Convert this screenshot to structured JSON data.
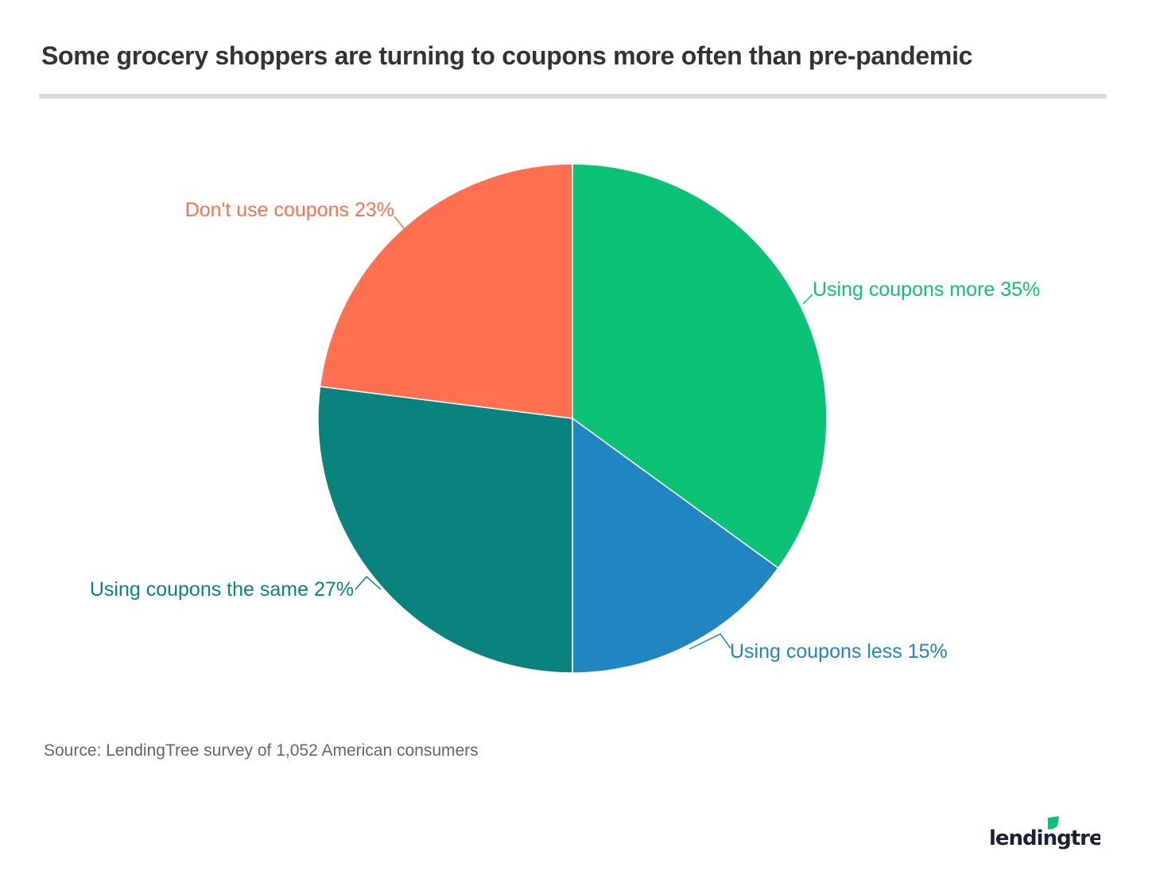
{
  "title": "Some grocery shoppers are turning to coupons more often than pre-pandemic",
  "source": "Source: LendingTree survey of 1,052 American consumers",
  "logo": {
    "text": "lendingtree",
    "icon": "leaf-icon",
    "text_color": "#1a2233",
    "leaf_color": "#0dbf76"
  },
  "chart_data": {
    "type": "pie",
    "start": "12 o'clock",
    "direction": "clockwise",
    "slices": [
      {
        "label": "Using coupons more",
        "value": 35,
        "display": "Using coupons more 35%",
        "color": "#0bc275"
      },
      {
        "label": "Using coupons less",
        "value": 15,
        "display": "Using coupons less 15%",
        "color": "#2185c2"
      },
      {
        "label": "Using coupons the same",
        "value": 27,
        "display": "Using coupons the same 27%",
        "color": "#0a837f"
      },
      {
        "label": "Don't use coupons",
        "value": 23,
        "display": "Don't use coupons 23%",
        "color": "#ff7050"
      }
    ]
  }
}
